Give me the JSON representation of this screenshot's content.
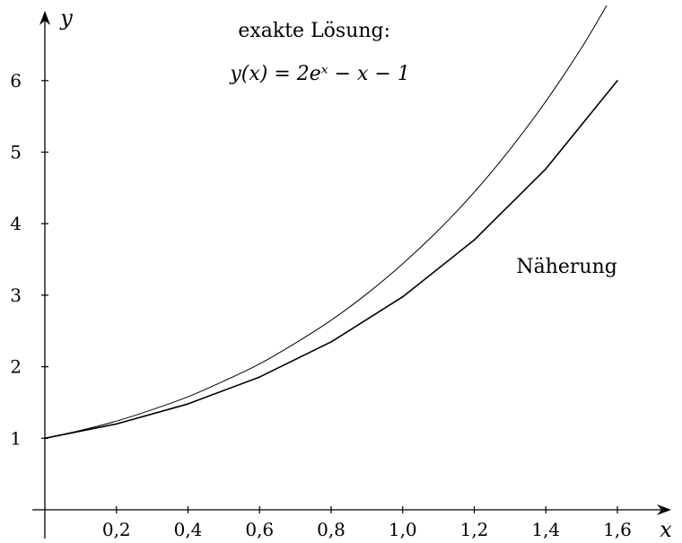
{
  "chart_data": {
    "type": "line",
    "xlabel": "x",
    "ylabel": "y",
    "xlim": [
      -0.03,
      1.67
    ],
    "ylim": [
      -1.05,
      6.85
    ],
    "x_ticks": [
      0.2,
      0.4,
      0.6,
      0.8,
      1.0,
      1.2,
      1.4,
      1.6
    ],
    "x_tick_labels": [
      "0,2",
      "0,4",
      "0,6",
      "0,8",
      "1,0",
      "1,2",
      "1,4",
      "1,6"
    ],
    "y_ticks": [
      1,
      2,
      3,
      4,
      5,
      6
    ],
    "y_tick_labels": [
      "1",
      "2",
      "3",
      "4",
      "5",
      "6"
    ],
    "grid": false,
    "legend": "none",
    "series": [
      {
        "name": "exakte Lösung",
        "x": [
          0,
          0.1,
          0.2,
          0.3,
          0.4,
          0.5,
          0.6,
          0.7,
          0.8,
          0.9,
          1.0,
          1.1,
          1.2,
          1.3,
          1.4,
          1.5,
          1.57
        ],
        "y": [
          1.0,
          1.11,
          1.24,
          1.4,
          1.58,
          1.8,
          2.04,
          2.33,
          2.65,
          3.02,
          3.44,
          3.91,
          4.44,
          5.04,
          5.71,
          6.46,
          7.05
        ]
      },
      {
        "name": "Näherung",
        "x": [
          0,
          0.2,
          0.4,
          0.6,
          0.8,
          1.0,
          1.2,
          1.4,
          1.6
        ],
        "y": [
          1.0,
          1.2,
          1.48,
          1.856,
          2.347,
          2.977,
          3.772,
          4.766,
          5.999
        ]
      }
    ],
    "annotations": [
      {
        "text": "exakte Lösung:",
        "x": 0.52,
        "y": 6.7
      },
      {
        "text": "y(x) = 2eˣ − x − 1",
        "x": 0.52,
        "y": 6.1
      },
      {
        "text": "Näherung",
        "x": 1.32,
        "y": 3.4
      }
    ]
  }
}
